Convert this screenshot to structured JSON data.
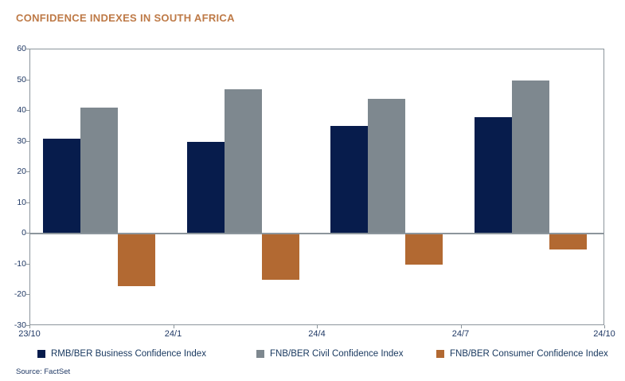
{
  "chart_data": {
    "type": "bar",
    "title": "CONFIDENCE INDEXES IN SOUTH AFRICA",
    "source": "Source: FactSet",
    "categories": [
      "23Q4",
      "24Q1",
      "24Q2",
      "24Q3"
    ],
    "x_ticks": [
      "23/10",
      "24/1",
      "24/4",
      "24/7",
      "24/10"
    ],
    "y_ticks": [
      60,
      50,
      40,
      30,
      20,
      10,
      0,
      -10,
      -20,
      -30
    ],
    "ylim": [
      -30,
      60
    ],
    "grid": false,
    "legend_position": "bottom",
    "series": [
      {
        "key": "business",
        "name": "RMB/BER Business Confidence Index",
        "color": "#071C4C",
        "values": [
          31,
          30,
          35,
          38
        ]
      },
      {
        "key": "civil",
        "name": "FNB/BER Civil Confidence Index",
        "color": "#7E888F",
        "values": [
          41,
          47,
          44,
          50
        ]
      },
      {
        "key": "consumer",
        "name": "FNB/BER Consumer Confidence Index",
        "color": "#B26932",
        "values": [
          -17,
          -15,
          -10,
          -5
        ]
      }
    ],
    "colors": {
      "title": "#BE7A47",
      "axis_line": "#8C959C",
      "tick_text": "#1F3864",
      "legend_text": "#17375E"
    }
  }
}
